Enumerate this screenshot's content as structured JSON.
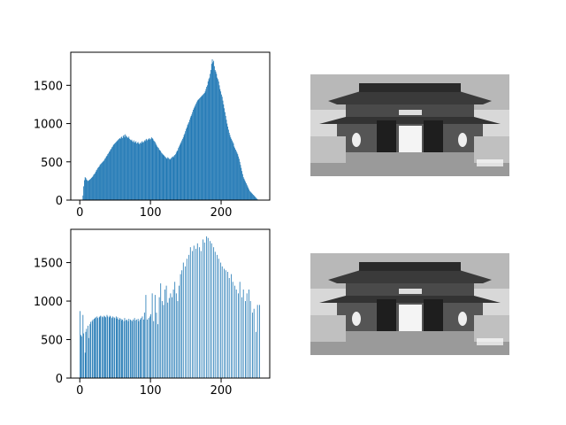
{
  "chart_data": [
    {
      "type": "histogram",
      "color": "#1f77b4",
      "xlim": [
        -12.8,
        268.8
      ],
      "ylim": [
        0,
        1932
      ],
      "xticks": [
        0,
        100,
        200
      ],
      "yticks": [
        0,
        500,
        1000,
        1500
      ],
      "bins": [
        0,
        1,
        2,
        3,
        4,
        5,
        6,
        7,
        8,
        9,
        10,
        11,
        12,
        13,
        14,
        15,
        16,
        17,
        18,
        19,
        20,
        21,
        22,
        23,
        24,
        25,
        26,
        27,
        28,
        29,
        30,
        31,
        32,
        33,
        34,
        35,
        36,
        37,
        38,
        39,
        40,
        41,
        42,
        43,
        44,
        45,
        46,
        47,
        48,
        49,
        50,
        51,
        52,
        53,
        54,
        55,
        56,
        57,
        58,
        59,
        60,
        61,
        62,
        63,
        64,
        65,
        66,
        67,
        68,
        69,
        70,
        71,
        72,
        73,
        74,
        75,
        76,
        77,
        78,
        79,
        80,
        81,
        82,
        83,
        84,
        85,
        86,
        87,
        88,
        89,
        90,
        91,
        92,
        93,
        94,
        95,
        96,
        97,
        98,
        99,
        100,
        101,
        102,
        103,
        104,
        105,
        106,
        107,
        108,
        109,
        110,
        111,
        112,
        113,
        114,
        115,
        116,
        117,
        118,
        119,
        120,
        121,
        122,
        123,
        124,
        125,
        126,
        127,
        128,
        129,
        130,
        131,
        132,
        133,
        134,
        135,
        136,
        137,
        138,
        139,
        140,
        141,
        142,
        143,
        144,
        145,
        146,
        147,
        148,
        149,
        150,
        151,
        152,
        153,
        154,
        155,
        156,
        157,
        158,
        159,
        160,
        161,
        162,
        163,
        164,
        165,
        166,
        167,
        168,
        169,
        170,
        171,
        172,
        173,
        174,
        175,
        176,
        177,
        178,
        179,
        180,
        181,
        182,
        183,
        184,
        185,
        186,
        187,
        188,
        189,
        190,
        191,
        192,
        193,
        194,
        195,
        196,
        197,
        198,
        199,
        200,
        201,
        202,
        203,
        204,
        205,
        206,
        207,
        208,
        209,
        210,
        211,
        212,
        213,
        214,
        215,
        216,
        217,
        218,
        219,
        220,
        221,
        222,
        223,
        224,
        225,
        226,
        227,
        228,
        229,
        230,
        231,
        232,
        233,
        234,
        235,
        236,
        237,
        238,
        239,
        240,
        241,
        242,
        243,
        244,
        245,
        246,
        247,
        248,
        249,
        250,
        251,
        252,
        253,
        254,
        255,
        256
      ],
      "counts": [
        0,
        0,
        0,
        0,
        60,
        180,
        260,
        300,
        290,
        270,
        260,
        250,
        255,
        265,
        270,
        280,
        290,
        300,
        310,
        330,
        340,
        350,
        370,
        390,
        400,
        420,
        430,
        440,
        460,
        470,
        480,
        490,
        500,
        510,
        520,
        540,
        550,
        570,
        580,
        600,
        610,
        630,
        640,
        660,
        670,
        690,
        700,
        720,
        730,
        740,
        750,
        760,
        770,
        780,
        790,
        800,
        810,
        800,
        820,
        830,
        810,
        840,
        850,
        820,
        860,
        840,
        830,
        820,
        810,
        830,
        800,
        790,
        780,
        790,
        770,
        760,
        780,
        750,
        760,
        770,
        740,
        750,
        760,
        740,
        730,
        750,
        740,
        760,
        770,
        750,
        760,
        780,
        770,
        790,
        800,
        780,
        790,
        800,
        810,
        790,
        800,
        820,
        810,
        800,
        780,
        770,
        760,
        740,
        720,
        700,
        690,
        680,
        660,
        650,
        640,
        620,
        610,
        600,
        590,
        580,
        570,
        560,
        550,
        540,
        560,
        550,
        540,
        530,
        540,
        550,
        560,
        570,
        560,
        580,
        590,
        600,
        620,
        640,
        650,
        680,
        700,
        720,
        740,
        760,
        780,
        800,
        820,
        850,
        870,
        900,
        930,
        950,
        980,
        1000,
        1020,
        1050,
        1080,
        1100,
        1120,
        1150,
        1180,
        1200,
        1220,
        1240,
        1260,
        1280,
        1300,
        1310,
        1320,
        1330,
        1340,
        1350,
        1360,
        1370,
        1380,
        1390,
        1400,
        1420,
        1450,
        1480,
        1500,
        1550,
        1580,
        1600,
        1650,
        1700,
        1780,
        1840,
        1800,
        1820,
        1750,
        1700,
        1680,
        1650,
        1600,
        1580,
        1550,
        1500,
        1450,
        1420,
        1380,
        1350,
        1300,
        1250,
        1200,
        1150,
        1100,
        1050,
        1000,
        960,
        920,
        880,
        850,
        820,
        800,
        780,
        760,
        740,
        700,
        680,
        660,
        640,
        620,
        600,
        570,
        540,
        500,
        460,
        420,
        380,
        340,
        300,
        280,
        260,
        240,
        220,
        200,
        180,
        160,
        140,
        120,
        110,
        100,
        90,
        80,
        70,
        60,
        50,
        40,
        30,
        20,
        10,
        0,
        0,
        0,
        0
      ]
    },
    {
      "type": "histogram",
      "color": "#1f77b4",
      "xlim": [
        -12.8,
        268.8
      ],
      "ylim": [
        0,
        1932
      ],
      "xticks": [
        0,
        100,
        200
      ],
      "yticks": [
        0,
        500,
        1000,
        1500
      ],
      "bins": [
        0,
        1,
        2,
        3,
        4,
        5,
        6,
        7,
        8,
        9,
        10,
        11,
        12,
        13,
        14,
        15,
        16,
        17,
        18,
        19,
        20,
        21,
        22,
        23,
        24,
        25,
        26,
        27,
        28,
        29,
        30,
        31,
        32,
        33,
        34,
        35,
        36,
        37,
        38,
        39,
        40,
        41,
        42,
        43,
        44,
        45,
        46,
        47,
        48,
        49,
        50,
        51,
        52,
        53,
        54,
        55,
        56,
        57,
        58,
        59,
        60,
        61,
        62,
        63,
        64,
        65,
        66,
        67,
        68,
        69,
        70,
        71,
        72,
        73,
        74,
        75,
        76,
        77,
        78,
        79,
        80,
        81,
        82,
        83,
        84,
        85,
        86,
        87,
        88,
        89,
        90,
        91,
        92,
        93,
        94,
        95,
        96,
        97,
        98,
        99,
        100,
        101,
        102,
        103,
        104,
        105,
        106,
        107,
        108,
        109,
        110,
        111,
        112,
        113,
        114,
        115,
        116,
        117,
        118,
        119,
        120,
        121,
        122,
        123,
        124,
        125,
        126,
        127,
        128,
        129,
        130,
        131,
        132,
        133,
        134,
        135,
        136,
        137,
        138,
        139,
        140,
        141,
        142,
        143,
        144,
        145,
        146,
        147,
        148,
        149,
        150,
        151,
        152,
        153,
        154,
        155,
        156,
        157,
        158,
        159,
        160,
        161,
        162,
        163,
        164,
        165,
        166,
        167,
        168,
        169,
        170,
        171,
        172,
        173,
        174,
        175,
        176,
        177,
        178,
        179,
        180,
        181,
        182,
        183,
        184,
        185,
        186,
        187,
        188,
        189,
        190,
        191,
        192,
        193,
        194,
        195,
        196,
        197,
        198,
        199,
        200,
        201,
        202,
        203,
        204,
        205,
        206,
        207,
        208,
        209,
        210,
        211,
        212,
        213,
        214,
        215,
        216,
        217,
        218,
        219,
        220,
        221,
        222,
        223,
        224,
        225,
        226,
        227,
        228,
        229,
        230,
        231,
        232,
        233,
        234,
        235,
        236,
        237,
        238,
        239,
        240,
        241,
        242,
        243,
        244,
        245,
        246,
        247,
        248,
        249,
        250,
        251,
        252,
        253,
        254,
        255,
        256
      ],
      "counts": [
        870,
        560,
        540,
        0,
        820,
        580,
        0,
        330,
        600,
        640,
        0,
        680,
        520,
        0,
        700,
        730,
        0,
        740,
        760,
        0,
        770,
        780,
        790,
        0,
        800,
        780,
        0,
        790,
        800,
        810,
        0,
        800,
        790,
        0,
        810,
        800,
        790,
        0,
        820,
        800,
        0,
        790,
        810,
        800,
        0,
        780,
        800,
        0,
        790,
        780,
        0,
        800,
        770,
        790,
        0,
        760,
        780,
        0,
        770,
        750,
        760,
        0,
        740,
        780,
        0,
        750,
        760,
        0,
        740,
        770,
        0,
        760,
        750,
        0,
        740,
        760,
        0,
        780,
        750,
        0,
        760,
        0,
        770,
        740,
        0,
        760,
        780,
        0,
        800,
        0,
        760,
        850,
        0,
        1080,
        0,
        760,
        0,
        780,
        0,
        800,
        830,
        0,
        1100,
        0,
        740,
        0,
        1080,
        0,
        850,
        0,
        700,
        0,
        1050,
        0,
        1230,
        0,
        1000,
        0,
        950,
        0,
        1150,
        0,
        1200,
        0,
        980,
        0,
        1040,
        0,
        1100,
        0,
        1050,
        0,
        1150,
        0,
        1250,
        0,
        1100,
        0,
        1000,
        0,
        1200,
        0,
        1350,
        0,
        1400,
        0,
        1500,
        0,
        0,
        1450,
        0,
        1550,
        0,
        0,
        1600,
        0,
        1700,
        0,
        0,
        1650,
        0,
        1720,
        0,
        0,
        1680,
        0,
        1750,
        0,
        0,
        1700,
        0,
        1650,
        0,
        0,
        1800,
        0,
        1760,
        0,
        0,
        1840,
        0,
        1820,
        0,
        0,
        1780,
        0,
        1750,
        0,
        0,
        1700,
        0,
        1640,
        0,
        0,
        1600,
        0,
        1550,
        0,
        0,
        1500,
        0,
        1450,
        0,
        0,
        1420,
        0,
        1400,
        0,
        0,
        1380,
        0,
        1300,
        0,
        0,
        1350,
        0,
        1250,
        0,
        0,
        1200,
        0,
        1150,
        0,
        0,
        1100,
        0,
        1250,
        0,
        0,
        1050,
        0,
        1150,
        0,
        0,
        1000,
        0,
        1100,
        0,
        0,
        1150,
        0,
        1000,
        0,
        0,
        850,
        0,
        900,
        0,
        0,
        600,
        0,
        950,
        0,
        0,
        950,
        0
      ]
    }
  ]
}
